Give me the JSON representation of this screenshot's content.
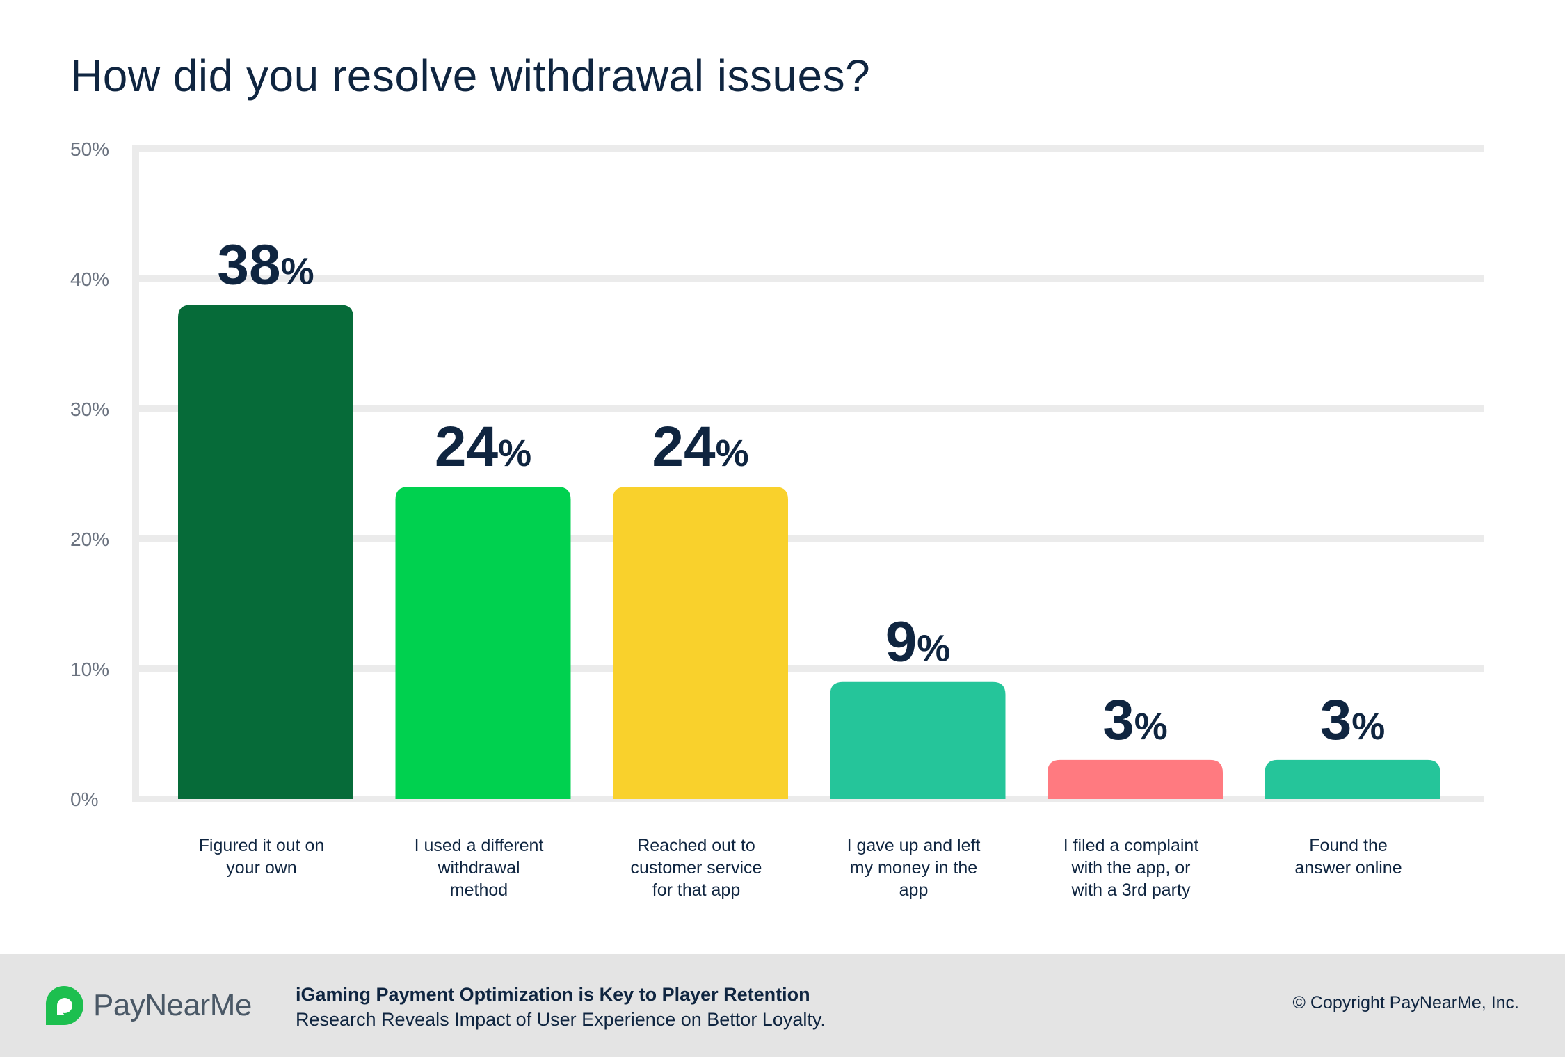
{
  "chart_data": {
    "type": "bar",
    "title": "How did you resolve withdrawal issues?",
    "categories": [
      [
        "Figured it out on",
        "your own"
      ],
      [
        "I used a different",
        "withdrawal",
        "method"
      ],
      [
        "Reached out to",
        "customer service",
        "for that app"
      ],
      [
        "I gave up and left",
        "my money in the",
        "app"
      ],
      [
        "I filed a complaint",
        "with the app, or",
        "with a 3rd party"
      ],
      [
        "Found the",
        "answer online"
      ]
    ],
    "values": [
      38,
      24,
      24,
      9,
      3,
      3
    ],
    "value_labels": [
      {
        "num": "38",
        "pct": "%"
      },
      {
        "num": "24",
        "pct": "%"
      },
      {
        "num": "24",
        "pct": "%"
      },
      {
        "num": "9",
        "pct": "%"
      },
      {
        "num": "3",
        "pct": "%"
      },
      {
        "num": "3",
        "pct": "%"
      }
    ],
    "colors": [
      "#066b39",
      "#00d14f",
      "#f9d12c",
      "#25c59a",
      "#ff7a80",
      "#25c59a"
    ],
    "yticks": [
      "0%",
      "10%",
      "20%",
      "30%",
      "40%",
      "50%"
    ],
    "ylim": [
      0,
      50
    ],
    "grid": true,
    "xlabel": "",
    "ylabel": ""
  },
  "footer": {
    "brand": "PayNearMe",
    "headline": "iGaming Payment Optimization is Key to Player Retention",
    "subheadline": "Research Reveals Impact of User Experience on Bettor Loyalty.",
    "copyright": "© Copyright PayNearMe, Inc.",
    "logo_color": "#1dbf4f"
  }
}
